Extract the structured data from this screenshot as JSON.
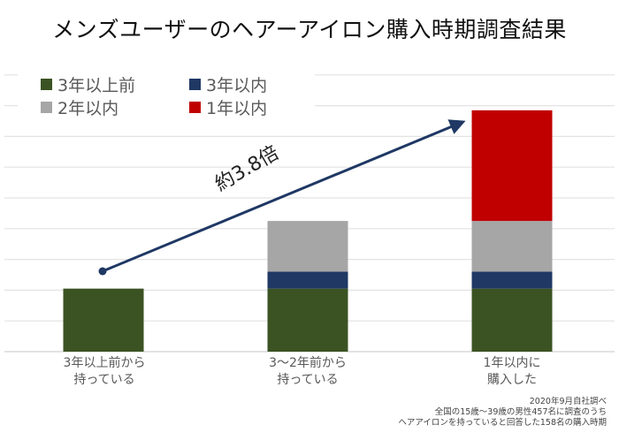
{
  "title": "メンズユーザーのヘアーアイロン購入時期調査結果",
  "chart_data": {
    "type": "bar",
    "stacked": true,
    "title": "メンズユーザーのヘアーアイロン購入時期調査結果",
    "categories": [
      "3年以上前から\n持っている",
      "3〜2年前から\n持っている",
      "1年以内に\n購入した"
    ],
    "series": [
      {
        "name": "3年以上前",
        "color": "#3b5323",
        "values": [
          2.05,
          2.05,
          2.05
        ]
      },
      {
        "name": "3年以内",
        "color": "#1f3864",
        "values": [
          0,
          0.55,
          0.55
        ]
      },
      {
        "name": "2年以内",
        "color": "#a6a6a6",
        "values": [
          0,
          1.65,
          1.65
        ]
      },
      {
        "name": "1年以内",
        "color": "#c00000",
        "values": [
          0,
          0,
          3.6
        ]
      }
    ],
    "ylim": [
      0,
      9
    ],
    "grid": true,
    "y_axis_labels_shown": false,
    "legend_placement": "top-left",
    "annotation": "約3.8倍"
  },
  "footnote": [
    "2020年9月自社調べ",
    "全国の15歳〜39歳の男性457名に調査のうち",
    "ヘアアイロンを持っていると回答した158名の購入時期"
  ]
}
